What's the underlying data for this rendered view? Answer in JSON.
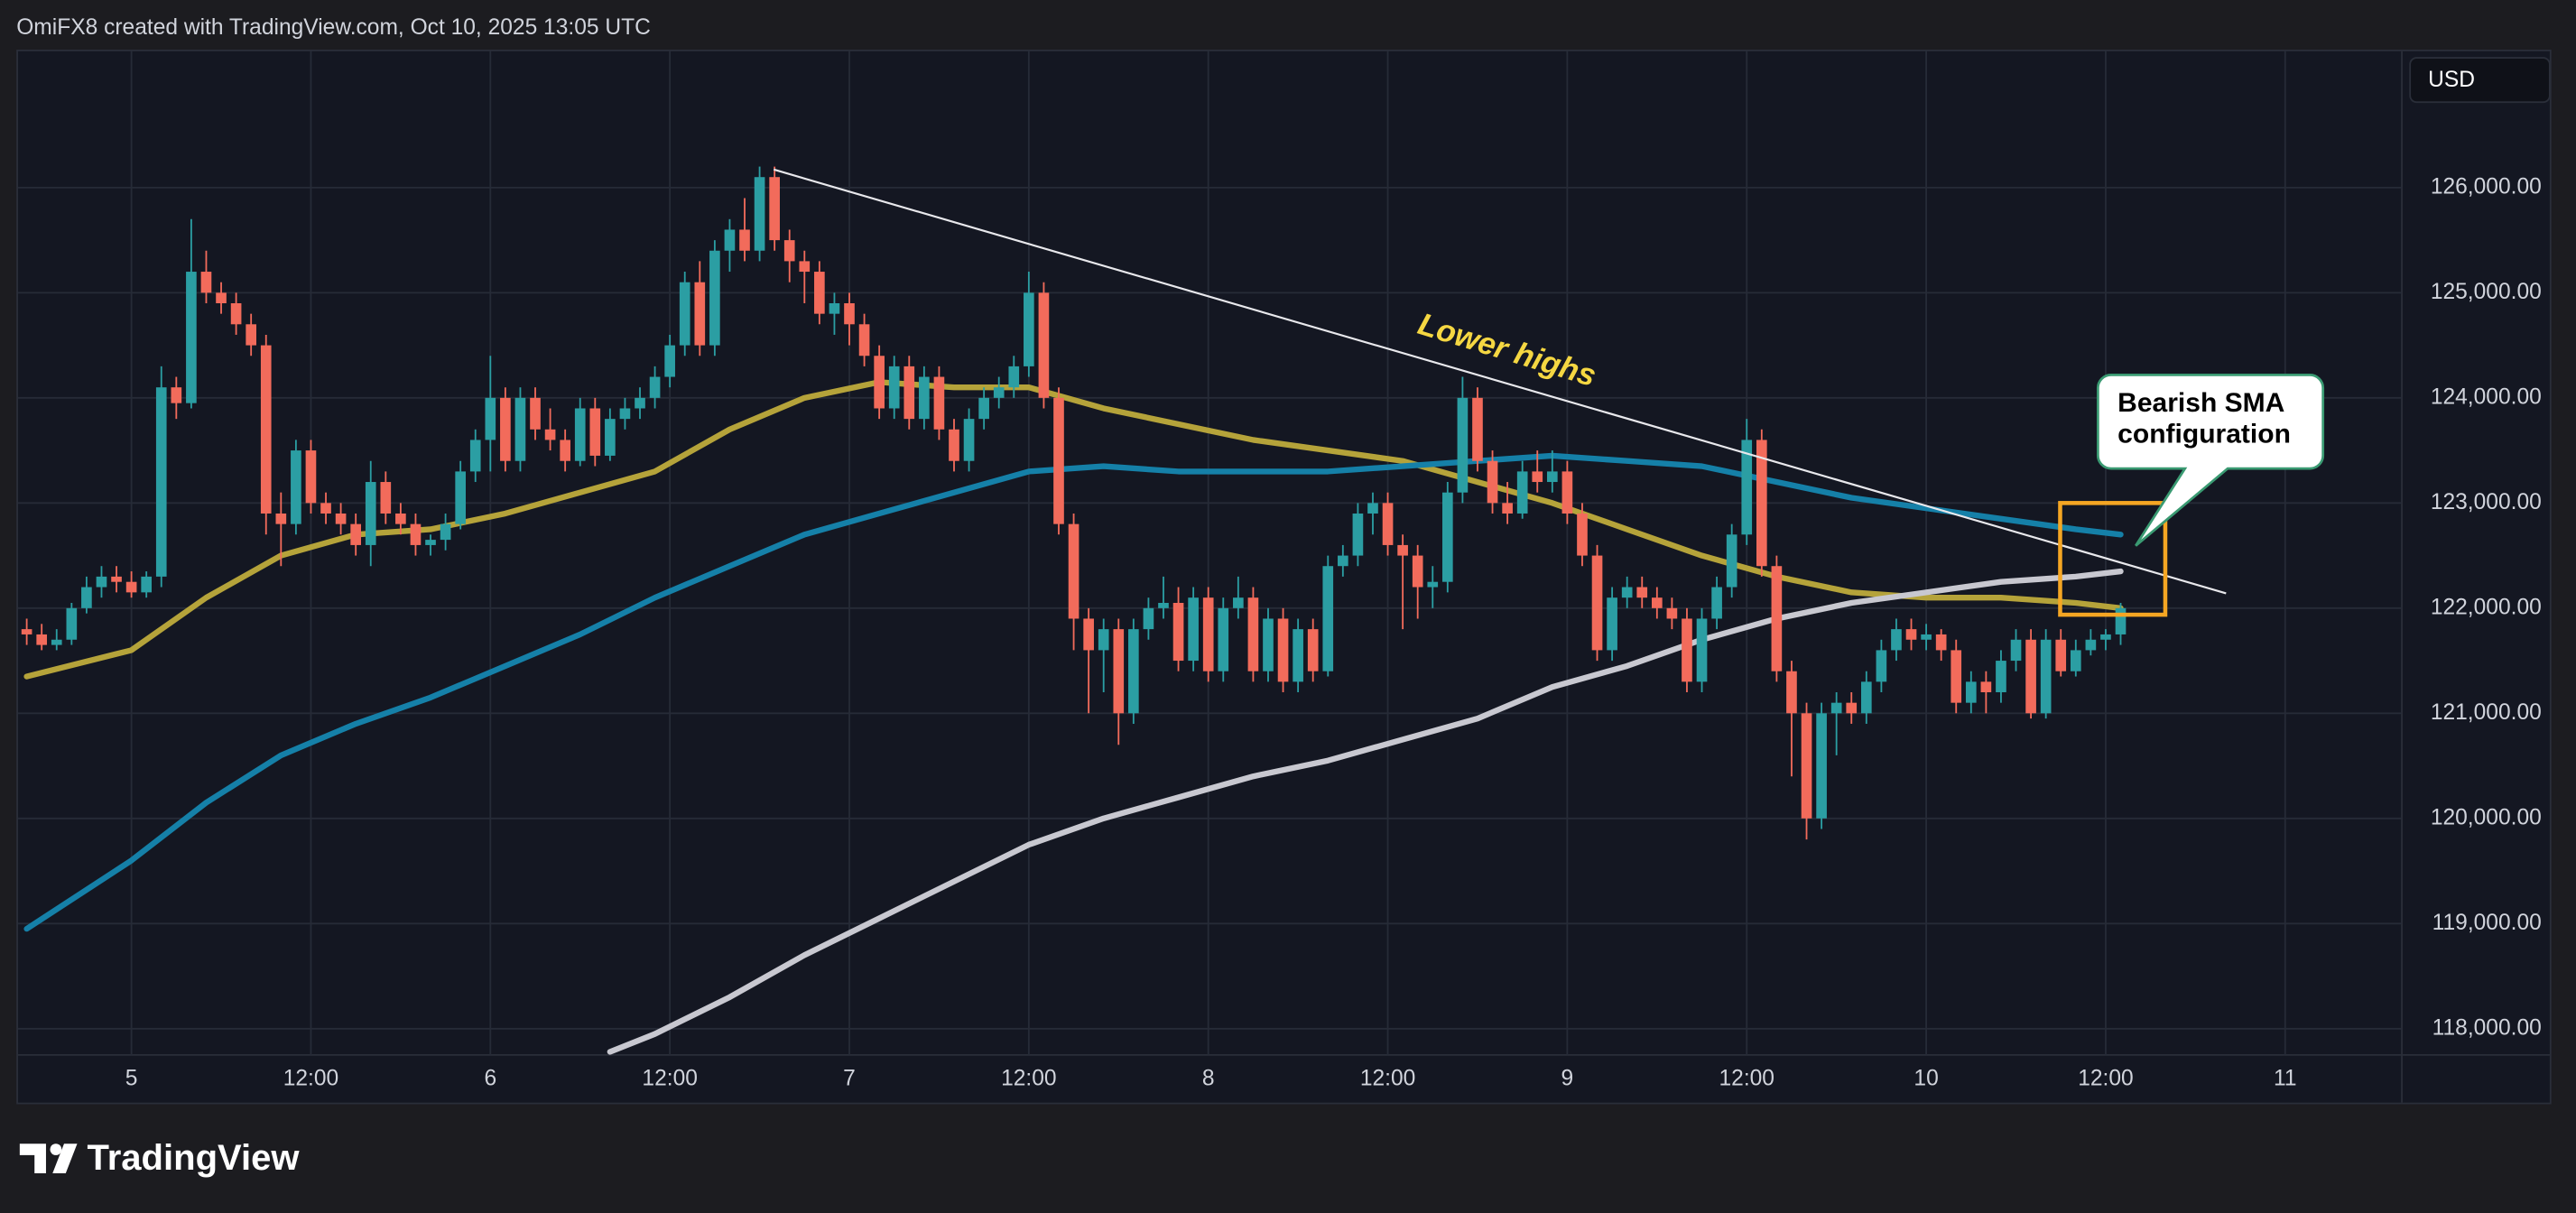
{
  "header": "OmiFX8 created with TradingView.com, Oct 10, 2025 13:05 UTC",
  "footer": "TradingView",
  "chart_data": {
    "type": "candlestick",
    "currency": "USD",
    "up_color": "#2b9ea3",
    "down_color": "#f26b5b",
    "grid": true,
    "ylim": [
      117750,
      127300
    ],
    "yticks": [
      {
        "value": 118000,
        "label": "118,000.00"
      },
      {
        "value": 119000,
        "label": "119,000.00"
      },
      {
        "value": 120000,
        "label": "120,000.00"
      },
      {
        "value": 121000,
        "label": "121,000.00"
      },
      {
        "value": 122000,
        "label": "122,000.00"
      },
      {
        "value": 123000,
        "label": "123,000.00"
      },
      {
        "value": 124000,
        "label": "124,000.00"
      },
      {
        "value": 125000,
        "label": "125,000.00"
      },
      {
        "value": 126000,
        "label": "126,000.00"
      }
    ],
    "categories": [
      null,
      null,
      null,
      null,
      null,
      null,
      null,
      "5",
      null,
      null,
      null,
      null,
      null,
      null,
      null,
      null,
      null,
      null,
      null,
      "12:00",
      null,
      null,
      null,
      null,
      null,
      null,
      null,
      null,
      null,
      null,
      null,
      "6",
      null,
      null,
      null,
      null,
      null,
      null,
      null,
      null,
      null,
      null,
      null,
      "12:00",
      null,
      null,
      null,
      null,
      null,
      null,
      null,
      null,
      null,
      null,
      null,
      "7",
      null,
      null,
      null,
      null,
      null,
      null,
      null,
      null,
      null,
      null,
      null,
      "12:00",
      null,
      null,
      null,
      null,
      null,
      null,
      null,
      null,
      null,
      null,
      null,
      "8",
      null,
      null,
      null,
      null,
      null,
      null,
      null,
      null,
      null,
      null,
      null,
      "12:00",
      null,
      null,
      null,
      null,
      null,
      null,
      null,
      null,
      null,
      null,
      null,
      "9",
      null,
      null,
      null,
      null,
      null,
      null,
      null,
      null,
      null,
      null,
      null,
      "12:00",
      null,
      null,
      null,
      null,
      null,
      null,
      null,
      null,
      null,
      null,
      null,
      "10",
      null,
      null,
      null,
      null,
      null,
      null,
      null,
      null,
      null,
      null,
      null,
      "12:00",
      null,
      null,
      null,
      null,
      null,
      null,
      null,
      null,
      null,
      null,
      null,
      "11",
      null,
      null,
      null,
      null,
      null,
      null,
      null
    ],
    "ohlc": [
      [
        121800,
        121900,
        121650,
        121750
      ],
      [
        121750,
        121850,
        121600,
        121650
      ],
      [
        121650,
        121800,
        121600,
        121700
      ],
      [
        121700,
        122050,
        121650,
        122000
      ],
      [
        122000,
        122300,
        121950,
        122200
      ],
      [
        122200,
        122400,
        122100,
        122300
      ],
      [
        122300,
        122400,
        122150,
        122250
      ],
      [
        122250,
        122350,
        122100,
        122150
      ],
      [
        122150,
        122350,
        122100,
        122300
      ],
      [
        122300,
        124300,
        122200,
        124100
      ],
      [
        124100,
        124200,
        123800,
        123950
      ],
      [
        123950,
        125700,
        123900,
        125200
      ],
      [
        125200,
        125400,
        124900,
        125000
      ],
      [
        125000,
        125100,
        124800,
        124900
      ],
      [
        124900,
        125000,
        124600,
        124700
      ],
      [
        124700,
        124800,
        124400,
        124500
      ],
      [
        124500,
        124600,
        122700,
        122900
      ],
      [
        122900,
        123100,
        122400,
        122800
      ],
      [
        122800,
        123600,
        122700,
        123500
      ],
      [
        123500,
        123600,
        122900,
        123000
      ],
      [
        123000,
        123100,
        122800,
        122900
      ],
      [
        122900,
        123000,
        122700,
        122800
      ],
      [
        122800,
        122900,
        122500,
        122600
      ],
      [
        122600,
        123400,
        122400,
        123200
      ],
      [
        123200,
        123300,
        122800,
        122900
      ],
      [
        122900,
        123000,
        122700,
        122800
      ],
      [
        122800,
        122900,
        122500,
        122600
      ],
      [
        122600,
        122700,
        122500,
        122650
      ],
      [
        122650,
        122900,
        122550,
        122800
      ],
      [
        122800,
        123400,
        122750,
        123300
      ],
      [
        123300,
        123700,
        123200,
        123600
      ],
      [
        123600,
        124400,
        123300,
        124000
      ],
      [
        124000,
        124100,
        123300,
        123400
      ],
      [
        123400,
        124100,
        123300,
        124000
      ],
      [
        124000,
        124100,
        123600,
        123700
      ],
      [
        123700,
        123900,
        123500,
        123600
      ],
      [
        123600,
        123700,
        123300,
        123400
      ],
      [
        123400,
        124000,
        123350,
        123900
      ],
      [
        123900,
        124000,
        123350,
        123450
      ],
      [
        123450,
        123900,
        123400,
        123800
      ],
      [
        123800,
        124000,
        123700,
        123900
      ],
      [
        123900,
        124100,
        123800,
        124000
      ],
      [
        124000,
        124300,
        123900,
        124200
      ],
      [
        124200,
        124600,
        124100,
        124500
      ],
      [
        124500,
        125200,
        124400,
        125100
      ],
      [
        125100,
        125300,
        124400,
        124500
      ],
      [
        124500,
        125500,
        124400,
        125400
      ],
      [
        125400,
        125700,
        125200,
        125600
      ],
      [
        125600,
        125900,
        125300,
        125400
      ],
      [
        125400,
        126200,
        125300,
        126100
      ],
      [
        126100,
        126200,
        125400,
        125500
      ],
      [
        125500,
        125600,
        125100,
        125300
      ],
      [
        125300,
        125400,
        124900,
        125200
      ],
      [
        125200,
        125300,
        124700,
        124800
      ],
      [
        124800,
        125000,
        124600,
        124900
      ],
      [
        124900,
        125000,
        124500,
        124700
      ],
      [
        124700,
        124800,
        124300,
        124400
      ],
      [
        124400,
        124500,
        123800,
        123900
      ],
      [
        123900,
        124400,
        123800,
        124300
      ],
      [
        124300,
        124400,
        123700,
        123800
      ],
      [
        123800,
        124300,
        123700,
        124200
      ],
      [
        124200,
        124300,
        123600,
        123700
      ],
      [
        123700,
        123800,
        123300,
        123400
      ],
      [
        123400,
        123900,
        123300,
        123800
      ],
      [
        123800,
        124100,
        123700,
        124000
      ],
      [
        124000,
        124200,
        123900,
        124100
      ],
      [
        124100,
        124400,
        124000,
        124300
      ],
      [
        124300,
        125200,
        124200,
        125000
      ],
      [
        125000,
        125100,
        123900,
        124000
      ],
      [
        124000,
        124100,
        122700,
        122800
      ],
      [
        122800,
        122900,
        121600,
        121900
      ],
      [
        121900,
        122000,
        121000,
        121600
      ],
      [
        121600,
        121900,
        121200,
        121800
      ],
      [
        121800,
        121900,
        120700,
        121000
      ],
      [
        121000,
        121900,
        120900,
        121800
      ],
      [
        121800,
        122100,
        121700,
        122000
      ],
      [
        122000,
        122300,
        121900,
        122050
      ],
      [
        122050,
        122200,
        121400,
        121500
      ],
      [
        121500,
        122200,
        121400,
        122100
      ],
      [
        122100,
        122200,
        121300,
        121400
      ],
      [
        121400,
        122100,
        121300,
        122000
      ],
      [
        122000,
        122300,
        121900,
        122100
      ],
      [
        122100,
        122200,
        121300,
        121400
      ],
      [
        121400,
        122000,
        121300,
        121900
      ],
      [
        121900,
        122000,
        121200,
        121300
      ],
      [
        121300,
        121900,
        121200,
        121800
      ],
      [
        121800,
        121900,
        121300,
        121400
      ],
      [
        121400,
        122500,
        121350,
        122400
      ],
      [
        122400,
        122600,
        122300,
        122500
      ],
      [
        122500,
        123000,
        122400,
        122900
      ],
      [
        122900,
        123100,
        122700,
        123000
      ],
      [
        123000,
        123100,
        122500,
        122600
      ],
      [
        122600,
        122700,
        121800,
        122500
      ],
      [
        122500,
        122600,
        121900,
        122200
      ],
      [
        122200,
        122400,
        122000,
        122250
      ],
      [
        122250,
        123200,
        122150,
        123100
      ],
      [
        123100,
        124200,
        123000,
        124000
      ],
      [
        124000,
        124100,
        123300,
        123400
      ],
      [
        123400,
        123500,
        122900,
        123000
      ],
      [
        123000,
        123200,
        122800,
        122900
      ],
      [
        122900,
        123400,
        122850,
        123300
      ],
      [
        123300,
        123500,
        123100,
        123200
      ],
      [
        123200,
        123500,
        123100,
        123300
      ],
      [
        123300,
        123400,
        122800,
        122900
      ],
      [
        122900,
        123000,
        122400,
        122500
      ],
      [
        122500,
        122600,
        121500,
        121600
      ],
      [
        121600,
        122200,
        121500,
        122100
      ],
      [
        122100,
        122300,
        122000,
        122200
      ],
      [
        122200,
        122300,
        122000,
        122100
      ],
      [
        122100,
        122200,
        121900,
        122000
      ],
      [
        122000,
        122100,
        121800,
        121900
      ],
      [
        121900,
        122000,
        121200,
        121300
      ],
      [
        121300,
        122000,
        121200,
        121900
      ],
      [
        121900,
        122300,
        121800,
        122200
      ],
      [
        122200,
        122800,
        122100,
        122700
      ],
      [
        122700,
        123800,
        122600,
        123600
      ],
      [
        123600,
        123700,
        122300,
        122400
      ],
      [
        122400,
        122500,
        121300,
        121400
      ],
      [
        121400,
        121500,
        120400,
        121000
      ],
      [
        121000,
        121100,
        119800,
        120000
      ],
      [
        120000,
        121100,
        119900,
        121000
      ],
      [
        121000,
        121200,
        120600,
        121100
      ],
      [
        121100,
        121200,
        120900,
        121000
      ],
      [
        121000,
        121400,
        120900,
        121300
      ],
      [
        121300,
        121700,
        121200,
        121600
      ],
      [
        121600,
        121900,
        121500,
        121800
      ],
      [
        121800,
        121900,
        121600,
        121700
      ],
      [
        121700,
        121850,
        121600,
        121750
      ],
      [
        121750,
        121800,
        121500,
        121600
      ],
      [
        121600,
        121700,
        121000,
        121100
      ],
      [
        121100,
        121400,
        121000,
        121300
      ],
      [
        121300,
        121400,
        121000,
        121200
      ],
      [
        121200,
        121600,
        121100,
        121500
      ],
      [
        121500,
        121800,
        121400,
        121700
      ],
      [
        121700,
        121800,
        120950,
        121000
      ],
      [
        121000,
        121800,
        120950,
        121700
      ],
      [
        121700,
        121800,
        121350,
        121400
      ],
      [
        121400,
        121700,
        121350,
        121600
      ],
      [
        121600,
        121800,
        121550,
        121700
      ],
      [
        121700,
        121800,
        121600,
        121750
      ],
      [
        121750,
        122050,
        121650,
        122000
      ],
      null,
      null,
      null,
      null,
      null,
      null,
      null,
      null,
      null,
      null,
      null,
      null,
      null,
      null,
      null,
      null,
      null,
      null
    ],
    "lines": [
      {
        "color": "#b5a33a",
        "x": [
          0,
          7,
          12,
          17,
          22,
          27,
          32,
          37,
          42,
          47,
          52,
          57,
          62,
          67,
          72,
          77,
          82,
          87,
          92,
          97,
          102,
          107,
          112,
          117,
          122,
          127,
          132,
          137,
          140
        ],
        "values": [
          121350,
          121600,
          122100,
          122500,
          122700,
          122750,
          122900,
          123100,
          123300,
          123700,
          124000,
          124150,
          124100,
          124100,
          123900,
          123750,
          123600,
          123500,
          123400,
          123200,
          123000,
          122750,
          122500,
          122300,
          122150,
          122100,
          122100,
          122050,
          122000
        ]
      },
      {
        "color": "#1580a8",
        "x": [
          0,
          7,
          12,
          17,
          22,
          27,
          32,
          37,
          42,
          47,
          52,
          57,
          62,
          67,
          72,
          77,
          82,
          87,
          92,
          97,
          102,
          107,
          112,
          117,
          122,
          127,
          132,
          137,
          140
        ],
        "values": [
          118950,
          119600,
          120150,
          120600,
          120900,
          121150,
          121450,
          121750,
          122100,
          122400,
          122700,
          122900,
          123100,
          123300,
          123350,
          123300,
          123300,
          123300,
          123350,
          123400,
          123450,
          123400,
          123350,
          123200,
          123050,
          122950,
          122850,
          122750,
          122700
        ]
      },
      {
        "color": "#c8c8d0",
        "x": [
          39,
          42,
          47,
          52,
          57,
          62,
          67,
          72,
          77,
          82,
          87,
          92,
          97,
          102,
          107,
          112,
          117,
          122,
          127,
          132,
          137,
          140
        ],
        "values": [
          117780,
          117950,
          118300,
          118700,
          119050,
          119400,
          119750,
          120000,
          120200,
          120400,
          120550,
          120750,
          120950,
          121250,
          121450,
          121700,
          121900,
          122050,
          122150,
          122250,
          122300,
          122350
        ]
      }
    ],
    "annotations": {
      "trend": "Lower highs",
      "callout": [
        "Bearish SMA",
        "configuration"
      ]
    }
  }
}
